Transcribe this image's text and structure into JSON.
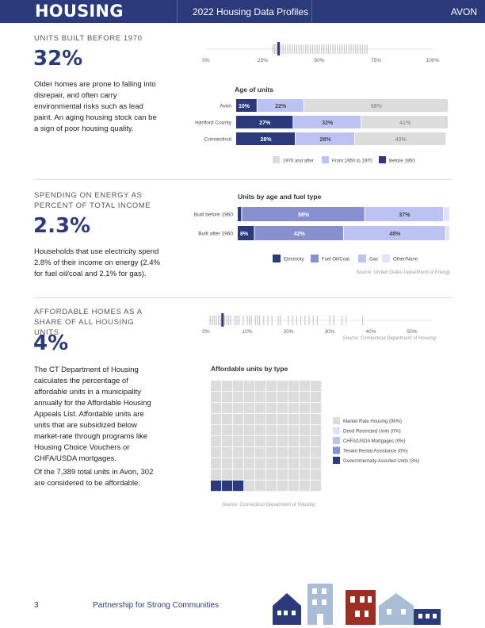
{
  "header": {
    "section": "HOUSING",
    "title": "2022 Housing Data Profiles",
    "town": "AVON"
  },
  "sections": [
    {
      "label": "UNITS BUILT BEFORE 1970",
      "value": "32%",
      "text": "Older homes are prone to falling into disrepair, and often carry environmental risks such as lead paint. An aging housing stock can be a sign of poor housing quality."
    },
    {
      "label": "SPENDING ON ENERGY AS PERCENT OF TOTAL INCOME",
      "value": "2.3%",
      "text": "Households that use electricity spend 2.8% of their income on energy (2.4% for fuel oil/coal and 2.1% for gas)."
    },
    {
      "label": "AFFORDABLE HOMES AS A SHARE OF ALL HOUSING UNITS",
      "value": "4%",
      "text": "The CT Department of Housing calculates the percentage of affordable units in a municipality annually for the Affordable Housing Appeals List. Affordable units are units that are subsidized below market-rate through programs like Housing Choice Vouchers or CHFA/USDA mortgages.",
      "text2": "Of the 7,389 total units in Avon, 302 are considered to be affordable."
    }
  ],
  "colors": {
    "navy": "#2b3a7a",
    "mid": "#8890d0",
    "light": "#bcc2f2",
    "pale": "#e0e2f8",
    "grey": "#dcdcdc",
    "tick": "#c8c8c8"
  },
  "chart_data": [
    {
      "type": "strip",
      "axis_ticks": [
        "0%",
        "25%",
        "50%",
        "75%",
        "100%"
      ],
      "xlim": [
        0,
        100
      ],
      "highlight": 32,
      "others": [
        29.5,
        30.2,
        30.8,
        31.5,
        33,
        34,
        35,
        36,
        37,
        38,
        39,
        40,
        41,
        42,
        43,
        44,
        45,
        46,
        47,
        48,
        49,
        50,
        51,
        52,
        53,
        54,
        55,
        56,
        57,
        58,
        59,
        60,
        61,
        62,
        63,
        64,
        65,
        66,
        67,
        68,
        69,
        70,
        71
      ]
    },
    {
      "type": "bar",
      "title": "Age of units",
      "categories": [
        "Avon",
        "Hartford County",
        "Connecticut"
      ],
      "series": [
        {
          "name": "Before 1950",
          "values": [
            10,
            27,
            28
          ],
          "color": "#2b3a7a"
        },
        {
          "name": "From 1950 to 1970",
          "values": [
            22,
            32,
            28
          ],
          "color": "#bcc2f2"
        },
        {
          "name": "1970 and after",
          "values": [
            68,
            41,
            43
          ],
          "color": "#dcdcdc"
        }
      ],
      "legend": [
        "1970 and after",
        "From 1950 to 1970",
        "Before 1950"
      ]
    },
    {
      "type": "bar",
      "title": "Units by age and fuel type",
      "categories": [
        "Built before 1960",
        "Built after 1960"
      ],
      "series": [
        {
          "name": "Electricity",
          "values": [
            2,
            8
          ],
          "color": "#2b3a7a"
        },
        {
          "name": "Fuel Oil/Coal",
          "values": [
            58,
            42
          ],
          "color": "#8890d0"
        },
        {
          "name": "Gas",
          "values": [
            37,
            48
          ],
          "color": "#bcc2f2"
        },
        {
          "name": "Other/None",
          "values": [
            3,
            2
          ],
          "color": "#e0e2f8"
        }
      ],
      "labels": [
        [
          "",
          "58%",
          "37%",
          ""
        ],
        [
          "8%",
          "42%",
          "48%",
          ""
        ]
      ],
      "source": "Source: United States Department of Energy"
    },
    {
      "type": "strip",
      "axis_ticks": [
        "0%",
        "10%",
        "20%",
        "30%",
        "40%",
        "50%"
      ],
      "xlim": [
        0,
        55
      ],
      "highlight": 4,
      "others": [
        1,
        1.5,
        2,
        2.5,
        3,
        3.5,
        4.5,
        5,
        5.5,
        6,
        7,
        7.5,
        8,
        9,
        10,
        10.5,
        11,
        12,
        12.5,
        13,
        14,
        15,
        16,
        17.5,
        18,
        20,
        21,
        22,
        23,
        24,
        25,
        26,
        27,
        30,
        31,
        33,
        34,
        38
      ],
      "source": "Source: Connecticut Department of Housing"
    },
    {
      "type": "waffle",
      "title": "Affordable units by type",
      "grid": [
        10,
        10
      ],
      "legend": [
        {
          "name": "Market Rate Housing (96%)",
          "value": 96,
          "color": "#dcdcdc"
        },
        {
          "name": "Deed Restricted Units (0%)",
          "value": 0,
          "color": "#e0e2f8"
        },
        {
          "name": "CHFA/USDA Mortgages (0%)",
          "value": 0,
          "color": "#bcc2f2"
        },
        {
          "name": "Tenant Rental Assistance (0%)",
          "value": 0,
          "color": "#8890d0"
        },
        {
          "name": "Governmentally-Assisted Units (3%)",
          "value": 3,
          "color": "#2b3a7a"
        }
      ],
      "filled_cells": 3,
      "source": "Source: Connecticut Department of Housing"
    }
  ],
  "footer": {
    "page": "3",
    "org": "Partnership for Strong Communities"
  }
}
